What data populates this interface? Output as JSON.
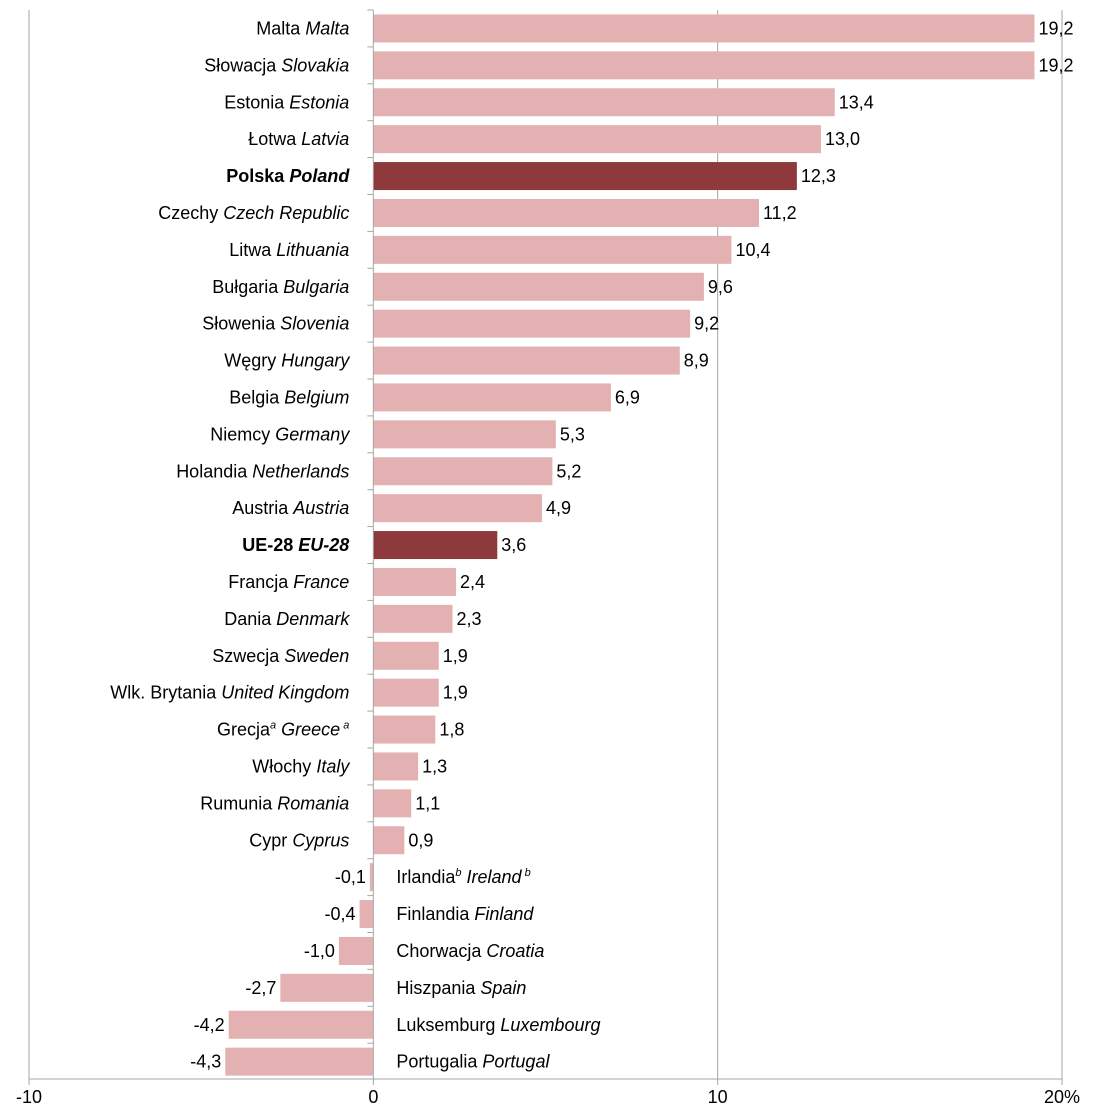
{
  "chart_data": {
    "type": "bar",
    "orientation": "horizontal",
    "title": "",
    "xlabel": "",
    "ylabel": "",
    "xlim": [
      -10,
      20
    ],
    "x_ticks": [
      {
        "value": -10,
        "label": "-10"
      },
      {
        "value": 0,
        "label": "0"
      },
      {
        "value": 10,
        "label": "10"
      },
      {
        "value": 20,
        "label": "20%"
      }
    ],
    "grid": "vertical at 10 and 20",
    "legend": "none",
    "colors": {
      "default": "#e3b1b1",
      "highlight": "#8e3a3c"
    },
    "categories": [
      {
        "pl": "Malta",
        "en": "Malta",
        "pl_sup": "",
        "en_sup": "",
        "value": 19.2,
        "label": "19,2",
        "highlight": false
      },
      {
        "pl": "Słowacja",
        "en": "Slovakia",
        "pl_sup": "",
        "en_sup": "",
        "value": 19.2,
        "label": "19,2",
        "highlight": false
      },
      {
        "pl": "Estonia",
        "en": "Estonia",
        "pl_sup": "",
        "en_sup": "",
        "value": 13.4,
        "label": "13,4",
        "highlight": false
      },
      {
        "pl": "Łotwa",
        "en": "Latvia",
        "pl_sup": "",
        "en_sup": "",
        "value": 13.0,
        "label": "13,0",
        "highlight": false
      },
      {
        "pl": "Polska",
        "en": "Poland",
        "pl_sup": "",
        "en_sup": "",
        "value": 12.3,
        "label": "12,3",
        "highlight": true
      },
      {
        "pl": "Czechy",
        "en": "Czech Republic",
        "pl_sup": "",
        "en_sup": "",
        "value": 11.2,
        "label": "11,2",
        "highlight": false
      },
      {
        "pl": "Litwa",
        "en": "Lithuania",
        "pl_sup": "",
        "en_sup": "",
        "value": 10.4,
        "label": "10,4",
        "highlight": false
      },
      {
        "pl": "Bułgaria",
        "en": "Bulgaria",
        "pl_sup": "",
        "en_sup": "",
        "value": 9.6,
        "label": "9,6",
        "highlight": false
      },
      {
        "pl": "Słowenia",
        "en": "Slovenia",
        "pl_sup": "",
        "en_sup": "",
        "value": 9.2,
        "label": "9,2",
        "highlight": false
      },
      {
        "pl": "Węgry",
        "en": "Hungary",
        "pl_sup": "",
        "en_sup": "",
        "value": 8.9,
        "label": "8,9",
        "highlight": false
      },
      {
        "pl": "Belgia",
        "en": "Belgium",
        "pl_sup": "",
        "en_sup": "",
        "value": 6.9,
        "label": "6,9",
        "highlight": false
      },
      {
        "pl": "Niemcy",
        "en": "Germany",
        "pl_sup": "",
        "en_sup": "",
        "value": 5.3,
        "label": "5,3",
        "highlight": false
      },
      {
        "pl": "Holandia",
        "en": "Netherlands",
        "pl_sup": "",
        "en_sup": "",
        "value": 5.2,
        "label": "5,2",
        "highlight": false
      },
      {
        "pl": "Austria",
        "en": "Austria",
        "pl_sup": "",
        "en_sup": "",
        "value": 4.9,
        "label": "4,9",
        "highlight": false
      },
      {
        "pl": "UE-28",
        "en": "EU-28",
        "pl_sup": "",
        "en_sup": "",
        "value": 3.6,
        "label": "3,6",
        "highlight": true
      },
      {
        "pl": "Francja",
        "en": "France",
        "pl_sup": "",
        "en_sup": "",
        "value": 2.4,
        "label": "2,4",
        "highlight": false
      },
      {
        "pl": "Dania",
        "en": "Denmark",
        "pl_sup": "",
        "en_sup": "",
        "value": 2.3,
        "label": "2,3",
        "highlight": false
      },
      {
        "pl": "Szwecja",
        "en": "Sweden",
        "pl_sup": "",
        "en_sup": "",
        "value": 1.9,
        "label": "1,9",
        "highlight": false
      },
      {
        "pl": "Wlk. Brytania",
        "en": "United Kingdom",
        "pl_sup": "",
        "en_sup": "",
        "value": 1.9,
        "label": "1,9",
        "highlight": false
      },
      {
        "pl": "Grecja",
        "en": "Greece",
        "pl_sup": "a",
        "en_sup": "a",
        "value": 1.8,
        "label": "1,8",
        "highlight": false
      },
      {
        "pl": "Włochy",
        "en": "Italy",
        "pl_sup": "",
        "en_sup": "",
        "value": 1.3,
        "label": "1,3",
        "highlight": false
      },
      {
        "pl": "Rumunia",
        "en": "Romania",
        "pl_sup": "",
        "en_sup": "",
        "value": 1.1,
        "label": "1,1",
        "highlight": false
      },
      {
        "pl": "Cypr",
        "en": "Cyprus",
        "pl_sup": "",
        "en_sup": "",
        "value": 0.9,
        "label": "0,9",
        "highlight": false
      },
      {
        "pl": "Irlandia",
        "en": "Ireland",
        "pl_sup": "b",
        "en_sup": "b",
        "value": -0.1,
        "label": "-0,1",
        "highlight": false
      },
      {
        "pl": "Finlandia",
        "en": "Finland",
        "pl_sup": "",
        "en_sup": "",
        "value": -0.4,
        "label": "-0,4",
        "highlight": false
      },
      {
        "pl": "Chorwacja",
        "en": "Croatia",
        "pl_sup": "",
        "en_sup": "",
        "value": -1.0,
        "label": "-1,0",
        "highlight": false
      },
      {
        "pl": "Hiszpania",
        "en": "Spain",
        "pl_sup": "",
        "en_sup": "",
        "value": -2.7,
        "label": "-2,7",
        "highlight": false
      },
      {
        "pl": "Luksemburg",
        "en": "Luxembourg",
        "pl_sup": "",
        "en_sup": "",
        "value": -4.2,
        "label": "-4,2",
        "highlight": false
      },
      {
        "pl": "Portugalia",
        "en": "Portugal",
        "pl_sup": "",
        "en_sup": "",
        "value": -4.3,
        "label": "-4,3",
        "highlight": false
      }
    ]
  }
}
